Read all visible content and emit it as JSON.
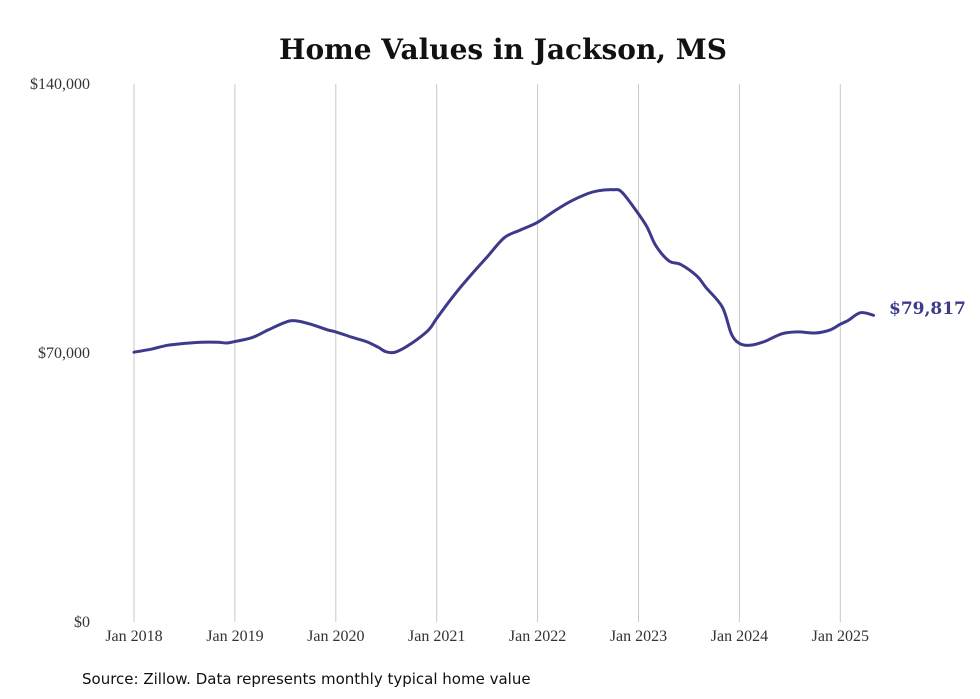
{
  "chart_data": {
    "type": "line",
    "title": "Home Values in Jackson, MS",
    "xlabel": "",
    "ylabel": "",
    "ylim": [
      0,
      140000
    ],
    "y_ticks": [
      "$0",
      "$70,000",
      "$140,000"
    ],
    "y_tick_values": [
      0,
      70000,
      140000
    ],
    "x_range": [
      2018.0,
      2025.5
    ],
    "x_ticks": [
      "Jan 2018",
      "Jan 2019",
      "Jan 2020",
      "Jan 2021",
      "Jan 2022",
      "Jan 2023",
      "Jan 2024",
      "Jan 2025"
    ],
    "x_tick_values": [
      2018,
      2019,
      2020,
      2021,
      2022,
      2023,
      2024,
      2025
    ],
    "grid": "vertical",
    "line_color": "#3d3a8c",
    "end_label": "$79,817",
    "series": [
      {
        "x": [
          2018.0,
          2018.17,
          2018.33,
          2018.5,
          2018.67,
          2018.83,
          2018.92,
          2019.0,
          2019.17,
          2019.33,
          2019.5,
          2019.6,
          2019.75,
          2019.92,
          2020.0,
          2020.17,
          2020.3,
          2020.42,
          2020.5,
          2020.6,
          2020.75,
          2020.92,
          2021.0,
          2021.17,
          2021.33,
          2021.5,
          2021.67,
          2021.83,
          2022.0,
          2022.17,
          2022.33,
          2022.5,
          2022.6,
          2022.75,
          2022.83,
          2022.95,
          2023.08,
          2023.17,
          2023.3,
          2023.42,
          2023.58,
          2023.67,
          2023.83,
          2023.92,
          2024.0,
          2024.1,
          2024.25,
          2024.42,
          2024.58,
          2024.75,
          2024.9,
          2025.0,
          2025.08,
          2025.2,
          2025.33
        ],
        "values": [
          70200,
          71000,
          72000,
          72500,
          72800,
          72800,
          72600,
          73000,
          74000,
          76000,
          78000,
          78400,
          77500,
          76000,
          75500,
          74000,
          73000,
          71500,
          70300,
          70300,
          72500,
          76000,
          79000,
          85000,
          90000,
          95000,
          100000,
          102000,
          104000,
          107000,
          109500,
          111500,
          112200,
          112500,
          112000,
          108000,
          103000,
          98000,
          94000,
          93000,
          90000,
          87000,
          82000,
          75000,
          72500,
          72000,
          73000,
          75000,
          75500,
          75200,
          76000,
          77500,
          78500,
          80500,
          79817
        ]
      }
    ]
  },
  "footer": {
    "source": "Source: Zillow. Data represents monthly typical home value"
  }
}
